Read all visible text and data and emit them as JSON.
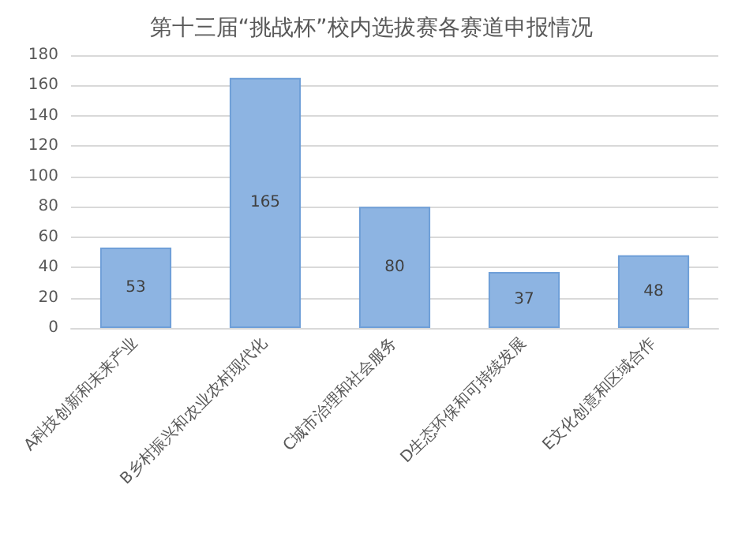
{
  "chart_data": {
    "type": "bar",
    "title": "第十三届“挑战杯”校内选拔赛各赛道申报情况",
    "categories": [
      "A科技创新和未来产业",
      "B乡村振兴和农业农村现代化",
      "C城市治理和社会服务",
      "D生态环保和可持续发展",
      "E文化创意和区域合作"
    ],
    "values": [
      53,
      165,
      80,
      37,
      48
    ],
    "color": "#8db4e2",
    "ylim": [
      0,
      180
    ],
    "yticks": [
      0,
      20,
      40,
      60,
      80,
      100,
      120,
      140,
      160,
      180
    ],
    "grid": "y",
    "data_labels": true
  }
}
